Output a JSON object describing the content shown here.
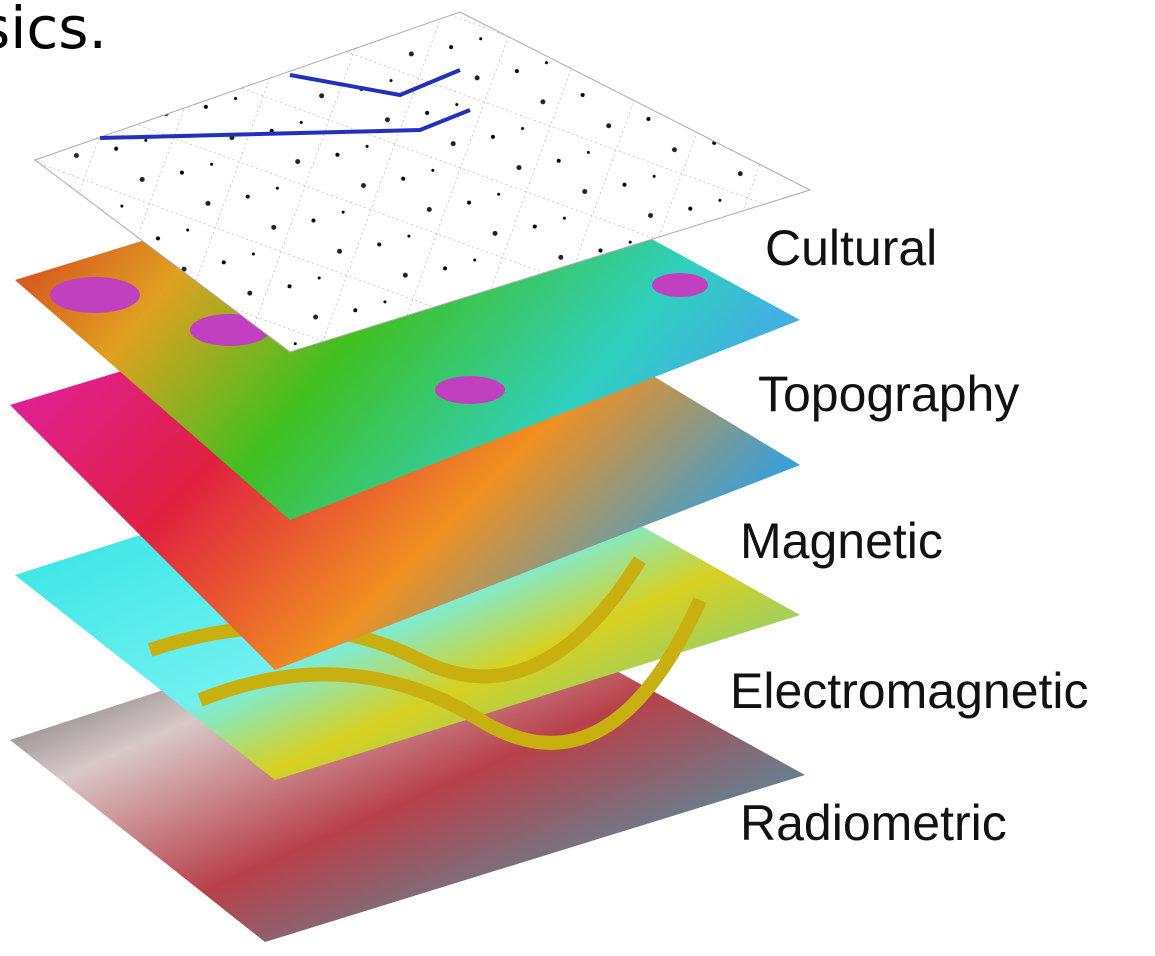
{
  "header": {
    "title": "sics."
  },
  "layers": [
    {
      "label": "Cultural"
    },
    {
      "label": "Topography"
    },
    {
      "label": "Magnetic"
    },
    {
      "label": "Electromagnetic"
    },
    {
      "label": "Radiometric"
    }
  ]
}
